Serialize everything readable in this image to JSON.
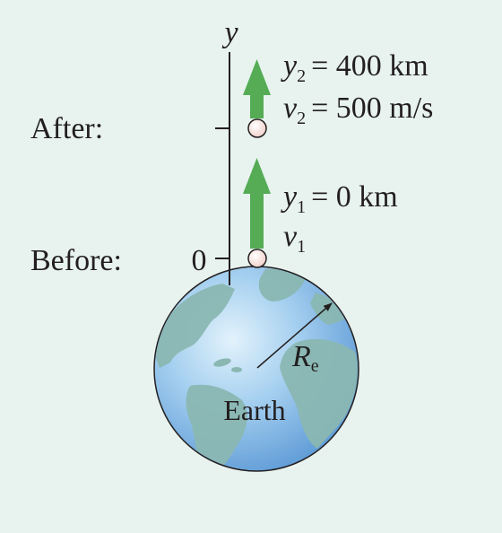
{
  "labels": {
    "axis_y": "y",
    "after": "After:",
    "before": "Before:",
    "origin_tick": "0",
    "earth": "Earth",
    "radius_symbol": "R",
    "radius_subscript": "e"
  },
  "after_state": {
    "y_symbol": "y",
    "y_subscript": "2",
    "y_value": "= 400 km",
    "v_symbol": "v",
    "v_subscript": "2",
    "v_value": "= 500 m/s"
  },
  "before_state": {
    "y_symbol": "y",
    "y_subscript": "1",
    "y_value": "= 0 km",
    "v_symbol": "v",
    "v_subscript": "1"
  },
  "colors": {
    "background": "#e8f3ef",
    "arrow_green": "#55ac55",
    "ball_fill": "#f4dcd6",
    "ocean": "#7fb7e6",
    "land": "#8ab7b2",
    "line": "#231f20"
  }
}
